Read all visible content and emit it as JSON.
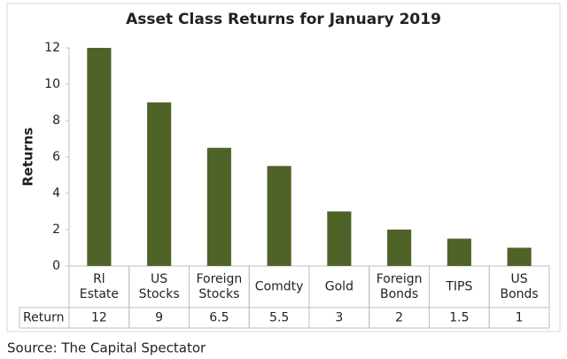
{
  "chart_data": {
    "type": "bar",
    "title": "Asset Class Returns for  January 2019",
    "y_label": "Returns",
    "categories": [
      [
        "Rl",
        "Estate"
      ],
      [
        "US",
        "Stocks"
      ],
      [
        "Foreign",
        "Stocks"
      ],
      [
        "Comdty"
      ],
      [
        "Gold"
      ],
      [
        "Foreign",
        "Bonds"
      ],
      [
        "TIPS"
      ],
      [
        "US",
        "Bonds"
      ]
    ],
    "values": [
      12,
      9,
      6.5,
      5.5,
      3,
      2,
      1.5,
      1
    ],
    "table_row_label": "Return",
    "color": "#4f6228",
    "ylim": [
      0,
      12
    ],
    "yticks": [
      0,
      2,
      4,
      6,
      8,
      10,
      12
    ],
    "source": "Source: The Capital Spectator"
  }
}
